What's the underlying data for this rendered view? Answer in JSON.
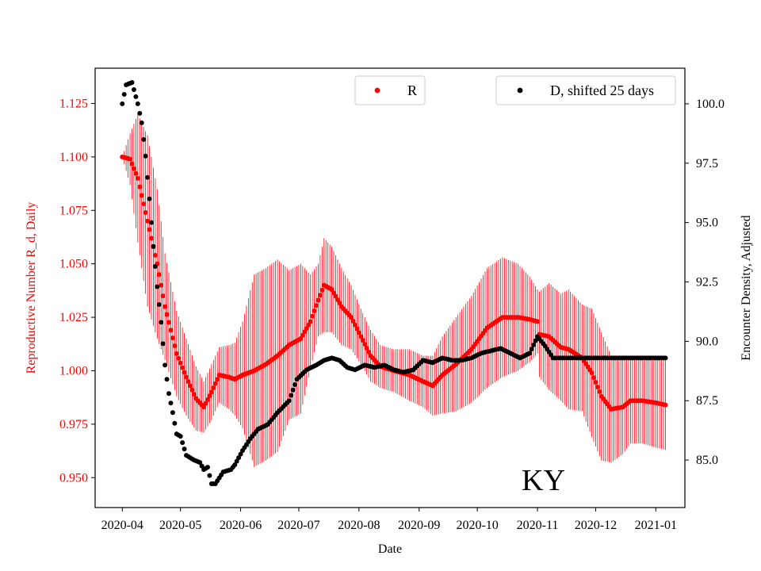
{
  "chart_data": {
    "type": "scatter",
    "state_label": "KY",
    "xlabel": "Date",
    "ylabel_left": "Reproductive Number R_d, Daily",
    "ylabel_right": "Encounter Density, Adjusted",
    "x_tick_labels": [
      "2020-04",
      "2020-05",
      "2020-06",
      "2020-07",
      "2020-08",
      "2020-09",
      "2020-10",
      "2020-11",
      "2020-12",
      "2021-01"
    ],
    "x_tick_days": [
      0,
      30,
      61,
      91,
      122,
      153,
      183,
      214,
      244,
      275
    ],
    "xlim_days": [
      -14,
      290
    ],
    "y_left": {
      "ylim": [
        0.936,
        1.1415
      ],
      "ticks": [
        0.95,
        0.975,
        1.0,
        1.025,
        1.05,
        1.075,
        1.1,
        1.125
      ],
      "tick_labels": [
        "0.950",
        "0.975",
        "1.000",
        "1.025",
        "1.050",
        "1.075",
        "1.100",
        "1.125"
      ],
      "color": "#ff0000"
    },
    "y_right": {
      "ylim": [
        83.0,
        101.5
      ],
      "ticks": [
        85.0,
        87.5,
        90.0,
        92.5,
        95.0,
        97.5,
        100.0
      ],
      "tick_labels": [
        "85.0",
        "87.5",
        "90.0",
        "92.5",
        "95.0",
        "97.5",
        "100.0"
      ],
      "color": "#000000"
    },
    "series": [
      {
        "name": "R",
        "color": "#ff0000",
        "axis": "left",
        "marker": "dot",
        "error_bars": true,
        "knots": [
          [
            0,
            1.1,
            0
          ],
          [
            4,
            1.099,
            0.012
          ],
          [
            8,
            1.09,
            0.03
          ],
          [
            13,
            1.07,
            0.04
          ],
          [
            18,
            1.05,
            0.035
          ],
          [
            22,
            1.03,
            0.025
          ],
          [
            28,
            1.008,
            0.02
          ],
          [
            33,
            0.997,
            0.018
          ],
          [
            38,
            0.987,
            0.015
          ],
          [
            42,
            0.983,
            0.012
          ],
          [
            46,
            0.99,
            0.013
          ],
          [
            50,
            0.998,
            0.013
          ],
          [
            55,
            0.997,
            0.015
          ],
          [
            58,
            0.996,
            0.017
          ],
          [
            62,
            0.998,
            0.025
          ],
          [
            68,
            1.0,
            0.045
          ],
          [
            74,
            1.003,
            0.045
          ],
          [
            80,
            1.007,
            0.045
          ],
          [
            86,
            1.012,
            0.035
          ],
          [
            92,
            1.015,
            0.035
          ],
          [
            97,
            1.023,
            0.022
          ],
          [
            101,
            1.033,
            0.017
          ],
          [
            104,
            1.04,
            0.022
          ],
          [
            108,
            1.038,
            0.02
          ],
          [
            113,
            1.03,
            0.018
          ],
          [
            118,
            1.025,
            0.015
          ],
          [
            123,
            1.016,
            0.013
          ],
          [
            128,
            1.007,
            0.012
          ],
          [
            133,
            1.002,
            0.01
          ],
          [
            140,
            1.0,
            0.01
          ],
          [
            148,
            0.998,
            0.012
          ],
          [
            155,
            0.995,
            0.012
          ],
          [
            160,
            0.993,
            0.014
          ],
          [
            165,
            0.998,
            0.018
          ],
          [
            172,
            1.003,
            0.022
          ],
          [
            180,
            1.01,
            0.025
          ],
          [
            188,
            1.02,
            0.028
          ],
          [
            196,
            1.025,
            0.028
          ],
          [
            204,
            1.025,
            0.025
          ],
          [
            210,
            1.024,
            0.02
          ],
          [
            214,
            1.023,
            0.015
          ],
          [
            215,
            1.017,
            0.02
          ],
          [
            220,
            1.016,
            0.025
          ],
          [
            226,
            1.011,
            0.025
          ],
          [
            230,
            1.01,
            0.028
          ],
          [
            237,
            1.006,
            0.025
          ],
          [
            242,
            0.999,
            0.03
          ],
          [
            247,
            0.988,
            0.03
          ],
          [
            252,
            0.982,
            0.025
          ],
          [
            258,
            0.983,
            0.022
          ],
          [
            262,
            0.986,
            0.02
          ],
          [
            268,
            0.986,
            0.02
          ],
          [
            275,
            0.985,
            0.021
          ],
          [
            280,
            0.984,
            0.021
          ]
        ]
      },
      {
        "name": "D, shifted 25 days",
        "color": "#000000",
        "axis": "right",
        "marker": "dot",
        "error_bars": false,
        "knots": [
          [
            0,
            100.0
          ],
          [
            2,
            100.8
          ],
          [
            5,
            100.9
          ],
          [
            8,
            100.0
          ],
          [
            10,
            99.2
          ],
          [
            12,
            97.8
          ],
          [
            14,
            96.0
          ],
          [
            16,
            94.0
          ],
          [
            18,
            92.3
          ],
          [
            20,
            90.8
          ],
          [
            22,
            89.0
          ],
          [
            24,
            87.8
          ],
          [
            26,
            87.0
          ],
          [
            28,
            86.1
          ],
          [
            30,
            86.0
          ],
          [
            33,
            85.2
          ],
          [
            37,
            85.0
          ],
          [
            40,
            84.9
          ],
          [
            42,
            84.6
          ],
          [
            44,
            84.7
          ],
          [
            46,
            84.0
          ],
          [
            48,
            84.0
          ],
          [
            52,
            84.5
          ],
          [
            56,
            84.6
          ],
          [
            58,
            84.8
          ],
          [
            62,
            85.4
          ],
          [
            66,
            85.9
          ],
          [
            70,
            86.3
          ],
          [
            75,
            86.5
          ],
          [
            80,
            87.0
          ],
          [
            86,
            87.5
          ],
          [
            90,
            88.4
          ],
          [
            95,
            88.8
          ],
          [
            100,
            89.0
          ],
          [
            104,
            89.2
          ],
          [
            108,
            89.3
          ],
          [
            112,
            89.2
          ],
          [
            116,
            88.9
          ],
          [
            120,
            88.8
          ],
          [
            125,
            89.0
          ],
          [
            130,
            88.9
          ],
          [
            135,
            89.0
          ],
          [
            140,
            88.8
          ],
          [
            145,
            88.7
          ],
          [
            150,
            88.8
          ],
          [
            155,
            89.2
          ],
          [
            160,
            89.1
          ],
          [
            165,
            89.3
          ],
          [
            170,
            89.2
          ],
          [
            175,
            89.2
          ],
          [
            180,
            89.3
          ],
          [
            185,
            89.5
          ],
          [
            190,
            89.6
          ],
          [
            195,
            89.7
          ],
          [
            200,
            89.5
          ],
          [
            205,
            89.3
          ],
          [
            210,
            89.5
          ],
          [
            214,
            90.2
          ],
          [
            218,
            89.8
          ],
          [
            222,
            89.3
          ],
          [
            226,
            89.3
          ],
          [
            230,
            89.3
          ],
          [
            250,
            89.3
          ],
          [
            270,
            89.3
          ],
          [
            280,
            89.3
          ]
        ]
      }
    ],
    "legend": [
      {
        "label": "R",
        "color": "#ff0000",
        "placement": "top-center"
      },
      {
        "label": "D, shifted 25 days",
        "color": "#000000",
        "placement": "top-right"
      }
    ]
  }
}
